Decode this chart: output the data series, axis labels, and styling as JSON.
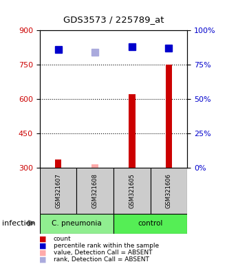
{
  "title": "GDS3573 / 225789_at",
  "samples": [
    "GSM321607",
    "GSM321608",
    "GSM321605",
    "GSM321606"
  ],
  "count_values": [
    335,
    315,
    620,
    750
  ],
  "count_absent": [
    false,
    true,
    false,
    false
  ],
  "percentile_values": [
    86,
    84,
    88,
    87
  ],
  "percentile_absent": [
    false,
    true,
    false,
    false
  ],
  "ylim_left": [
    300,
    900
  ],
  "ylim_right": [
    0,
    100
  ],
  "yticks_left": [
    300,
    450,
    600,
    750,
    900
  ],
  "yticks_right": [
    0,
    25,
    50,
    75,
    100
  ],
  "groups": [
    {
      "label": "C. pneumonia",
      "color": "#90ee90",
      "samples": [
        0,
        1
      ]
    },
    {
      "label": "control",
      "color": "#55ee55",
      "samples": [
        2,
        3
      ]
    }
  ],
  "bar_color": "#cc0000",
  "bar_absent_color": "#ffaaaa",
  "dot_color": "#0000cc",
  "dot_absent_color": "#aaaadd",
  "sample_bg_color": "#cccccc",
  "left_tick_color": "#cc0000",
  "right_tick_color": "#0000cc",
  "infection_label": "infection",
  "legend_items": [
    {
      "label": "count",
      "color": "#cc0000"
    },
    {
      "label": "percentile rank within the sample",
      "color": "#0000cc"
    },
    {
      "label": "value, Detection Call = ABSENT",
      "color": "#ffaaaa"
    },
    {
      "label": "rank, Detection Call = ABSENT",
      "color": "#aaaadd"
    }
  ]
}
